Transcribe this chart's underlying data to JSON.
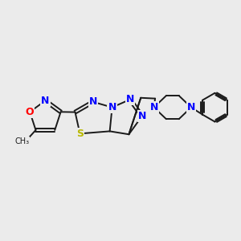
{
  "background_color": "#ebebeb",
  "bond_color": "#1a1a1a",
  "atom_colors": {
    "N": "#0000ff",
    "O": "#ff0000",
    "S": "#b8b800",
    "C": "#1a1a1a"
  },
  "figsize": [
    3.0,
    3.0
  ],
  "dpi": 100
}
